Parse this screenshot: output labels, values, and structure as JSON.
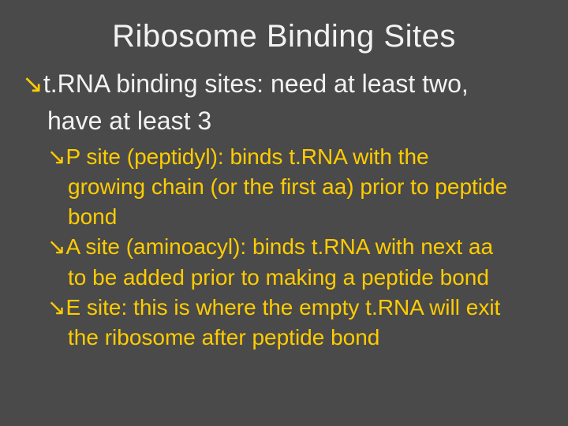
{
  "slide": {
    "background_color": "#4a4a4a",
    "title": {
      "text": "Ribosome Binding Sites",
      "color": "#f2f2f2",
      "fontsize": 40,
      "align": "center"
    },
    "bullet_arrow_glyph": "ê",
    "main_bullet": {
      "line1": "t.RNA binding sites: need at least two,",
      "line2": "have at least 3",
      "color": "#f2f2f2",
      "arrow_color": "#ffcc00",
      "fontsize": 32
    },
    "sub_bullets": {
      "color": "#ffcc00",
      "arrow_color": "#ffcc00",
      "fontsize": 28,
      "items": [
        {
          "l1": "P site (peptidyl): binds t.RNA with the",
          "l2": "growing chain (or the first aa) prior to peptide",
          "l3": "bond"
        },
        {
          "l1": "A site (aminoacyl): binds t.RNA with next aa",
          "l2": "to be added prior to making a peptide bond",
          "l3": ""
        },
        {
          "l1": "E site: this is where the empty t.RNA will exit",
          "l2": "the ribosome after peptide bond",
          "l3": ""
        }
      ]
    }
  }
}
